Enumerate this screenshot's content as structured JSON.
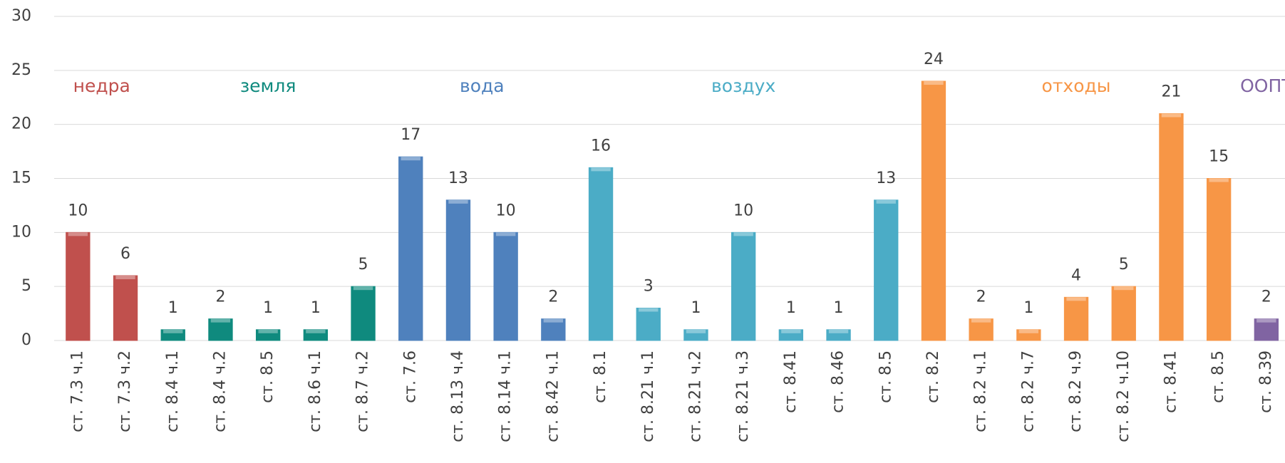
{
  "chart_data": {
    "type": "bar",
    "categories": [
      "ст. 7.3 ч.1",
      "ст. 7.3 ч.2",
      "ст. 8.4 ч.1",
      "ст. 8.4 ч.2",
      "ст. 8.5",
      "ст. 8.6 ч.1",
      "ст. 8.7 ч.2",
      "ст. 7.6",
      "ст. 8.13 ч.4",
      "ст. 8.14 ч.1",
      "ст. 8.42 ч.1",
      "ст. 8.1",
      "ст. 8.21 ч.1",
      "ст. 8.21 ч.2",
      "ст. 8.21 ч.3",
      "ст. 8.41",
      "ст. 8.46",
      "ст. 8.5",
      "ст. 8.2",
      "ст. 8.2 ч.1",
      "ст. 8.2 ч.7",
      "ст. 8.2 ч.9",
      "ст. 8.2 ч.10",
      "ст. 8.41",
      "ст. 8.5",
      "ст. 8.39"
    ],
    "series": [
      {
        "name": "недра",
        "color": "#c0504d",
        "values": [
          10,
          6,
          null,
          null,
          null,
          null,
          null,
          null,
          null,
          null,
          null,
          null,
          null,
          null,
          null,
          null,
          null,
          null,
          null,
          null,
          null,
          null,
          null,
          null,
          null,
          null
        ]
      },
      {
        "name": "земля",
        "color": "#0f8a7e",
        "values": [
          null,
          null,
          1,
          2,
          1,
          1,
          5,
          null,
          null,
          null,
          null,
          null,
          null,
          null,
          null,
          null,
          null,
          null,
          null,
          null,
          null,
          null,
          null,
          null,
          null,
          null
        ]
      },
      {
        "name": "вода",
        "color": "#4f81bd",
        "values": [
          null,
          null,
          null,
          null,
          null,
          null,
          null,
          17,
          13,
          10,
          2,
          null,
          null,
          null,
          null,
          null,
          null,
          null,
          null,
          null,
          null,
          null,
          null,
          null,
          null,
          null
        ]
      },
      {
        "name": "воздух",
        "color": "#4bacc6",
        "values": [
          null,
          null,
          null,
          null,
          null,
          null,
          null,
          null,
          null,
          null,
          null,
          16,
          3,
          1,
          10,
          1,
          1,
          13,
          null,
          null,
          null,
          null,
          null,
          null,
          null,
          null
        ]
      },
      {
        "name": "отходы",
        "color": "#f79646",
        "values": [
          null,
          null,
          null,
          null,
          null,
          null,
          null,
          null,
          null,
          null,
          null,
          null,
          null,
          null,
          null,
          null,
          null,
          null,
          24,
          2,
          1,
          4,
          5,
          21,
          15,
          null
        ]
      },
      {
        "name": "ООПТ",
        "color": "#8064a2",
        "values": [
          null,
          null,
          null,
          null,
          null,
          null,
          null,
          null,
          null,
          null,
          null,
          null,
          null,
          null,
          null,
          null,
          null,
          null,
          null,
          null,
          null,
          null,
          null,
          null,
          null,
          2
        ]
      }
    ],
    "ylim": [
      0,
      30
    ],
    "yticks": [
      0,
      5,
      10,
      15,
      20,
      25,
      30
    ],
    "grid": true
  }
}
